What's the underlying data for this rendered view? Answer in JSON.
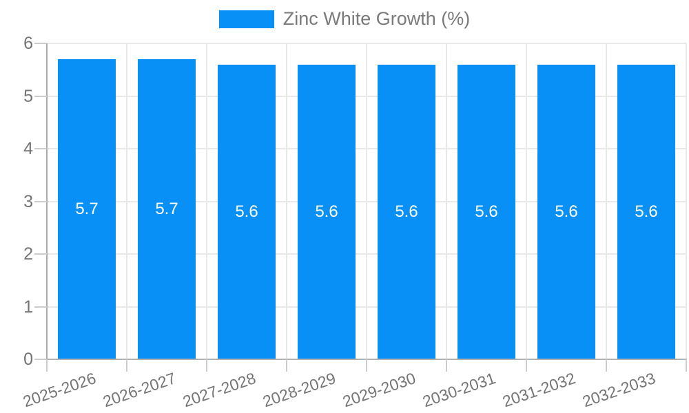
{
  "legend": {
    "label": "Zinc White Growth (%)"
  },
  "chart_data": {
    "type": "bar",
    "title": "",
    "xlabel": "",
    "ylabel": "",
    "categories": [
      "2025-2026",
      "2026-2027",
      "2027-2028",
      "2028-2029",
      "2029-2030",
      "2030-2031",
      "2031-2032",
      "2032-2033"
    ],
    "series": [
      {
        "name": "Zinc White Growth (%)",
        "color": "#0890f7",
        "values": [
          5.7,
          5.7,
          5.6,
          5.6,
          5.6,
          5.6,
          5.6,
          5.6
        ]
      }
    ],
    "value_labels": [
      "5.7",
      "5.7",
      "5.6",
      "5.6",
      "5.6",
      "5.6",
      "5.6",
      "5.6"
    ],
    "ylim": [
      0,
      6
    ],
    "yticks": [
      0,
      1,
      2,
      3,
      4,
      5,
      6
    ],
    "grid": true,
    "legend_position": "top-center",
    "xtick_rotation_deg": -19
  },
  "colors": {
    "bar": "#0890f7",
    "axis_line": "#a9a9a9",
    "x_axis_line": "#b3b3b3",
    "tick": "#cccccc",
    "gridline": "#e8e8e8",
    "tick_label": "#757575",
    "legend_text": "#7a7a7a",
    "bar_value_label": "#ffffff",
    "background": "#ffffff"
  }
}
